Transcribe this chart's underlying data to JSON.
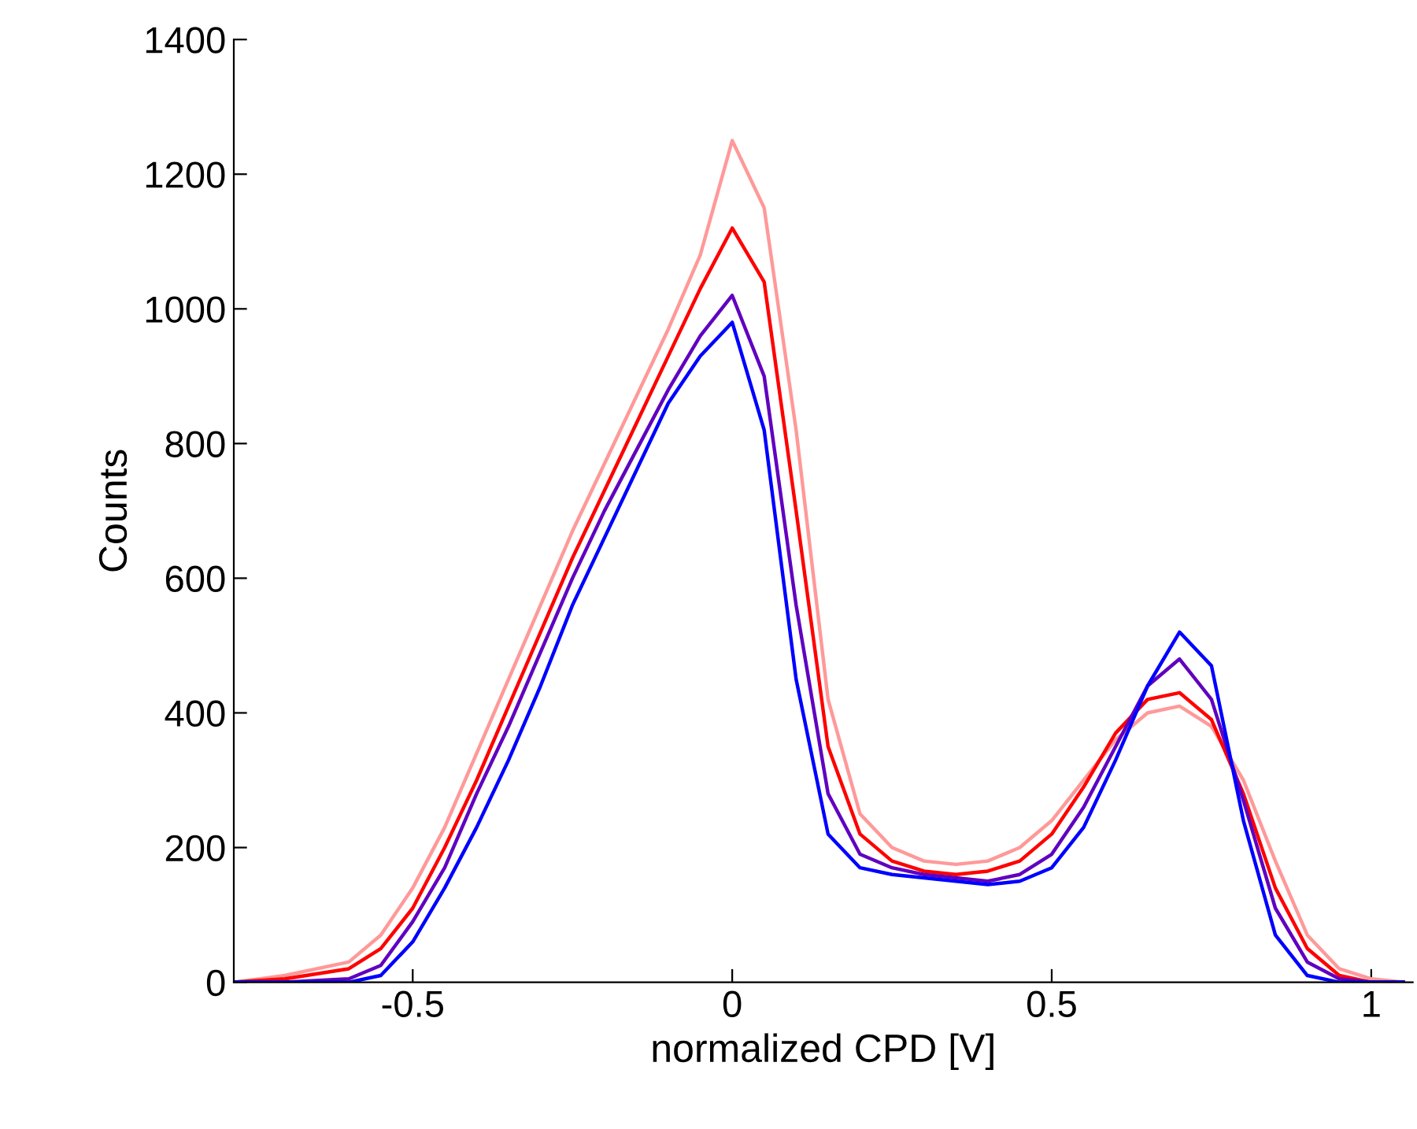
{
  "chart_data": {
    "type": "line",
    "xlabel": "normalized CPD [V]",
    "ylabel": "Counts",
    "x": [
      -0.78,
      -0.7,
      -0.6,
      -0.55,
      -0.5,
      -0.45,
      -0.4,
      -0.35,
      -0.3,
      -0.25,
      -0.2,
      -0.15,
      -0.1,
      -0.05,
      0,
      0.05,
      0.1,
      0.15,
      0.2,
      0.25,
      0.3,
      0.35,
      0.4,
      0.45,
      0.5,
      0.55,
      0.6,
      0.65,
      0.7,
      0.75,
      0.8,
      0.85,
      0.9,
      0.95,
      1.0,
      1.05
    ],
    "series": [
      {
        "color": "#ff9999",
        "values": [
          0,
          10,
          30,
          70,
          140,
          230,
          340,
          450,
          560,
          670,
          770,
          870,
          970,
          1080,
          1250,
          1150,
          820,
          420,
          250,
          200,
          180,
          175,
          180,
          200,
          240,
          300,
          360,
          400,
          410,
          380,
          300,
          180,
          70,
          20,
          5,
          0
        ]
      },
      {
        "color": "#ff0000",
        "values": [
          0,
          5,
          20,
          50,
          110,
          200,
          300,
          410,
          520,
          630,
          730,
          830,
          930,
          1030,
          1120,
          1040,
          700,
          350,
          220,
          180,
          165,
          160,
          165,
          180,
          220,
          290,
          370,
          420,
          430,
          390,
          280,
          140,
          50,
          10,
          0,
          0
        ]
      },
      {
        "color": "#6000c0",
        "values": [
          0,
          0,
          5,
          25,
          90,
          170,
          280,
          380,
          490,
          600,
          700,
          790,
          880,
          960,
          1020,
          900,
          560,
          280,
          190,
          170,
          160,
          155,
          150,
          160,
          190,
          260,
          350,
          440,
          480,
          420,
          270,
          110,
          30,
          5,
          0,
          0
        ]
      },
      {
        "color": "#0000ff",
        "values": [
          0,
          0,
          0,
          10,
          60,
          140,
          230,
          330,
          440,
          560,
          660,
          760,
          860,
          930,
          980,
          820,
          450,
          220,
          170,
          160,
          155,
          150,
          145,
          150,
          170,
          230,
          330,
          440,
          520,
          470,
          240,
          70,
          10,
          0,
          0,
          0
        ]
      }
    ],
    "xlim": [
      -0.78,
      1.065
    ],
    "ylim": [
      0,
      1400
    ],
    "xticks": [
      -0.5,
      0,
      0.5,
      1
    ],
    "yticks": [
      0,
      200,
      400,
      600,
      800,
      1000,
      1200,
      1400
    ],
    "grid": false,
    "legend": false
  }
}
